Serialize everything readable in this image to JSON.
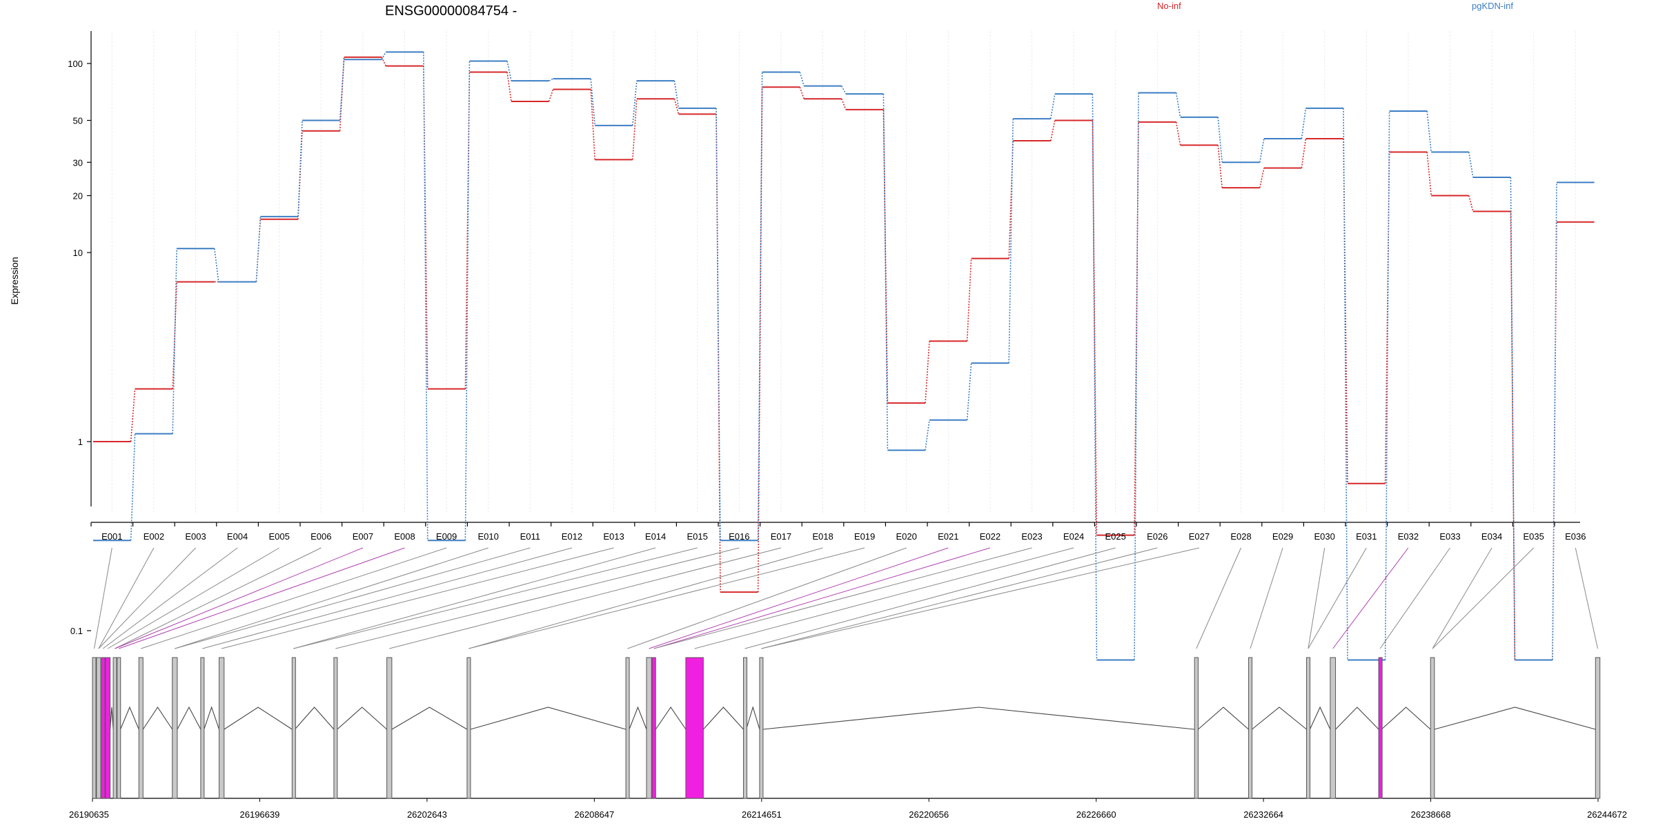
{
  "chart_data": {
    "type": "line",
    "title": "ENSG00000084754 -",
    "ylabel": "Expression",
    "xlabel": "",
    "y_scale": "log",
    "y_ticks": [
      0.1,
      1,
      10,
      20,
      30,
      50,
      100
    ],
    "y_tick_labels": [
      "0.1",
      "1",
      "10",
      "20",
      "30",
      "50",
      "100"
    ],
    "grid": "vertical",
    "legend_placement": "top",
    "categories": [
      "E001",
      "E002",
      "E003",
      "E004",
      "E005",
      "E006",
      "E007",
      "E008",
      "E009",
      "E010",
      "E011",
      "E012",
      "E013",
      "E014",
      "E015",
      "E016",
      "E017",
      "E018",
      "E019",
      "E020",
      "E021",
      "E022",
      "E023",
      "E024",
      "E025",
      "E026",
      "E027",
      "E028",
      "E029",
      "E030",
      "E031",
      "E032",
      "E033",
      "E034",
      "E035",
      "E036"
    ],
    "series": [
      {
        "name": "No-inf",
        "color": "#d62728",
        "values": [
          1.0,
          1.9,
          7.0,
          7.0,
          15.0,
          44.0,
          108.0,
          97.0,
          1.9,
          90.0,
          63.0,
          73.0,
          31.0,
          65.0,
          54.0,
          0.16,
          75.0,
          65.0,
          57.0,
          1.6,
          3.4,
          9.3,
          39.0,
          50.0,
          0.32,
          49.0,
          37.0,
          22.0,
          28.0,
          40.0,
          0.6,
          34.0,
          20.0,
          16.5,
          0.07,
          14.5
        ]
      },
      {
        "name": "pgKDN-inf",
        "color": "#3b7dc4",
        "values": [
          0.3,
          1.1,
          10.5,
          7.0,
          15.5,
          50.0,
          105.0,
          115.0,
          0.3,
          103.0,
          81.0,
          83.0,
          47.0,
          81.0,
          58.0,
          0.3,
          90.0,
          76.0,
          69.0,
          0.9,
          1.3,
          2.6,
          51.0,
          69.0,
          0.07,
          70.0,
          52.0,
          30.0,
          40.0,
          58.0,
          0.07,
          56.0,
          34.0,
          25.0,
          0.07,
          23.5
        ]
      }
    ],
    "genomic_axis": {
      "tick_labels": [
        "26190635",
        "26196639",
        "26202643",
        "26208647",
        "26214651",
        "26220656",
        "26226660",
        "26232664",
        "26238668",
        "26244672"
      ],
      "start": 26190635,
      "end": 26244672
    },
    "gene_model": {
      "exon_color": "#c8c8c8",
      "highlight_color": "#f020e0",
      "exons": [
        {
          "start": 26190635,
          "end": 26190760,
          "highlight": false
        },
        {
          "start": 26190780,
          "end": 26190930,
          "highlight": false
        },
        {
          "start": 26190960,
          "end": 26191060,
          "highlight": true
        },
        {
          "start": 26191100,
          "end": 26191270,
          "highlight": true
        },
        {
          "start": 26191380,
          "end": 26191500,
          "highlight": false
        },
        {
          "start": 26191520,
          "end": 26191640,
          "highlight": false
        },
        {
          "start": 26192300,
          "end": 26192450,
          "highlight": false
        },
        {
          "start": 26193500,
          "end": 26193680,
          "highlight": false
        },
        {
          "start": 26194520,
          "end": 26194640,
          "highlight": false
        },
        {
          "start": 26195180,
          "end": 26195360,
          "highlight": false
        },
        {
          "start": 26197800,
          "end": 26197900,
          "highlight": false
        },
        {
          "start": 26199300,
          "end": 26199420,
          "highlight": false
        },
        {
          "start": 26201200,
          "end": 26201380,
          "highlight": false
        },
        {
          "start": 26204080,
          "end": 26204200,
          "highlight": false
        },
        {
          "start": 26209780,
          "end": 26209900,
          "highlight": false
        },
        {
          "start": 26210520,
          "end": 26210700,
          "highlight": false
        },
        {
          "start": 26210720,
          "end": 26210850,
          "highlight": true
        },
        {
          "start": 26211930,
          "end": 26212560,
          "highlight": true
        },
        {
          "start": 26214000,
          "end": 26214100,
          "highlight": false
        },
        {
          "start": 26214580,
          "end": 26214700,
          "highlight": false
        },
        {
          "start": 26230190,
          "end": 26230320,
          "highlight": false
        },
        {
          "start": 26232130,
          "end": 26232250,
          "highlight": false
        },
        {
          "start": 26234210,
          "end": 26234330,
          "highlight": false
        },
        {
          "start": 26235060,
          "end": 26235250,
          "highlight": false
        },
        {
          "start": 26236800,
          "end": 26236900,
          "highlight": true
        },
        {
          "start": 26238660,
          "end": 26238800,
          "highlight": false
        },
        {
          "start": 26244580,
          "end": 26244740,
          "highlight": false
        }
      ],
      "connector_highlight": [
        6,
        7,
        20,
        21,
        31
      ]
    }
  }
}
